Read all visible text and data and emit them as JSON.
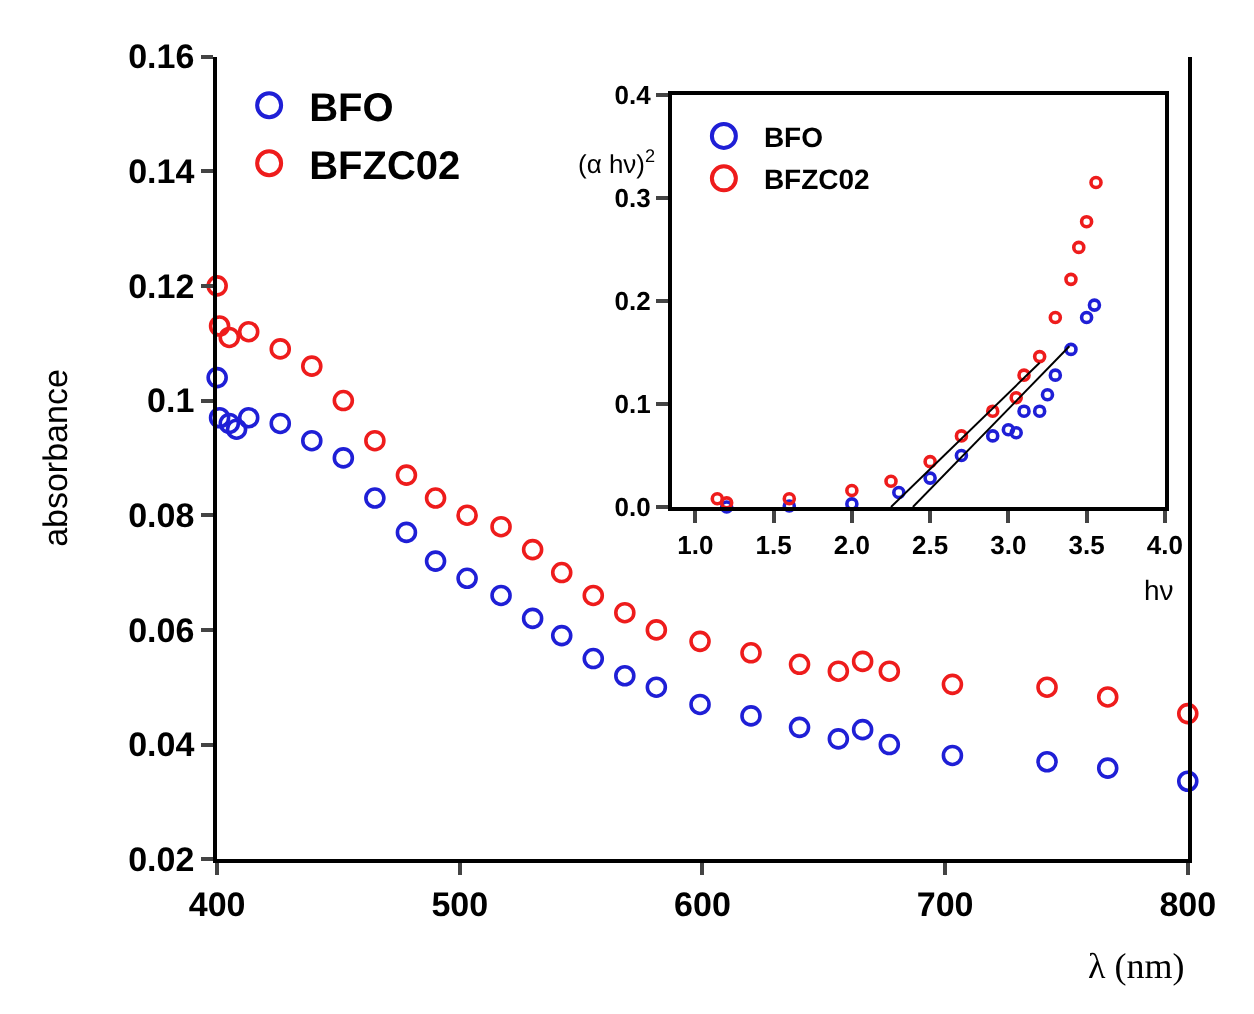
{
  "chart_data": [
    {
      "type": "scatter",
      "xlabel": "λ (nm)",
      "ylabel": "absorbance",
      "xlim": [
        400,
        800
      ],
      "ylim": [
        0.02,
        0.16
      ],
      "xticks": [
        400,
        500,
        600,
        700,
        800
      ],
      "yticks": [
        0.02,
        0.04,
        0.06,
        0.08,
        0.1,
        0.12,
        0.14,
        0.16
      ],
      "legend": "top left",
      "marker": "circle",
      "series": [
        {
          "name": "BFO",
          "color": "#1f1fd6",
          "x": [
            400,
            401,
            405,
            408,
            413,
            426,
            439,
            452,
            465,
            478,
            490,
            503,
            517,
            530,
            542,
            555,
            568,
            581,
            599,
            620,
            640,
            656,
            666,
            677,
            703,
            742,
            767,
            800
          ],
          "values": [
            0.104,
            0.097,
            0.096,
            0.095,
            0.097,
            0.096,
            0.093,
            0.09,
            0.083,
            0.077,
            0.072,
            0.069,
            0.066,
            0.062,
            0.059,
            0.055,
            0.052,
            0.05,
            0.047,
            0.045,
            0.043,
            0.041,
            0.0426,
            0.04,
            0.0381,
            0.037,
            0.0359,
            0.0336
          ]
        },
        {
          "name": "BFZC02",
          "color": "#ee1c1c",
          "x": [
            400,
            401,
            405,
            413,
            426,
            439,
            452,
            465,
            478,
            490,
            503,
            517,
            530,
            542,
            555,
            568,
            581,
            599,
            620,
            640,
            656,
            666,
            677,
            703,
            742,
            767,
            800
          ],
          "values": [
            0.12,
            0.113,
            0.111,
            0.112,
            0.109,
            0.106,
            0.1,
            0.093,
            0.087,
            0.083,
            0.08,
            0.078,
            0.074,
            0.07,
            0.066,
            0.063,
            0.06,
            0.058,
            0.056,
            0.054,
            0.0528,
            0.0545,
            0.0528,
            0.0505,
            0.05,
            0.0483,
            0.0454
          ]
        }
      ]
    },
    {
      "type": "scatter",
      "xlabel": "hν",
      "ylabel": "(α hν)$^{2}$",
      "xlim": [
        0.85,
        4.0
      ],
      "ylim": [
        0,
        0.4
      ],
      "xticks": [
        {
          "value": 1,
          "label": "1.0"
        },
        1.5,
        {
          "value": 2,
          "label": "2.0"
        },
        2.5,
        {
          "value": 3,
          "label": "3.0"
        },
        3.5,
        {
          "value": 4,
          "label": "4.0"
        }
      ],
      "yticks": [
        {
          "value": 0,
          "label": "0.0"
        },
        0.1,
        0.2,
        0.3,
        0.4
      ],
      "legend": "top left",
      "marker": "circle",
      "series": [
        {
          "name": "BFO",
          "color": "#1f1fd6",
          "x": [
            1.2,
            1.6,
            2.0,
            2.3,
            2.5,
            2.7,
            2.9,
            3.0,
            3.05,
            3.1,
            3.2,
            3.25,
            3.3,
            3.4,
            3.5,
            3.55
          ],
          "values": [
            0.0,
            0.001,
            0.003,
            0.014,
            0.028,
            0.05,
            0.069,
            0.075,
            0.072,
            0.093,
            0.093,
            0.109,
            0.128,
            0.153,
            0.184,
            0.196
          ]
        },
        {
          "name": "BFZC02",
          "color": "#ee1c1c",
          "x": [
            1.14,
            1.2,
            1.6,
            2.0,
            2.25,
            2.5,
            2.7,
            2.9,
            3.05,
            3.1,
            3.2,
            3.3,
            3.4,
            3.45,
            3.5,
            3.56
          ],
          "values": [
            0.008,
            0.004,
            0.008,
            0.016,
            0.025,
            0.044,
            0.069,
            0.093,
            0.106,
            0.128,
            0.146,
            0.184,
            0.221,
            0.252,
            0.277,
            0.315
          ]
        },
        {
          "type": "line",
          "marker": "none",
          "color": "#000000",
          "x": [
            2.25,
            3.2
          ],
          "values": [
            0,
            0.14
          ]
        },
        {
          "type": "line",
          "marker": "none",
          "color": "#000000",
          "x": [
            2.39,
            3.39
          ],
          "values": [
            0,
            0.156
          ]
        }
      ]
    }
  ]
}
